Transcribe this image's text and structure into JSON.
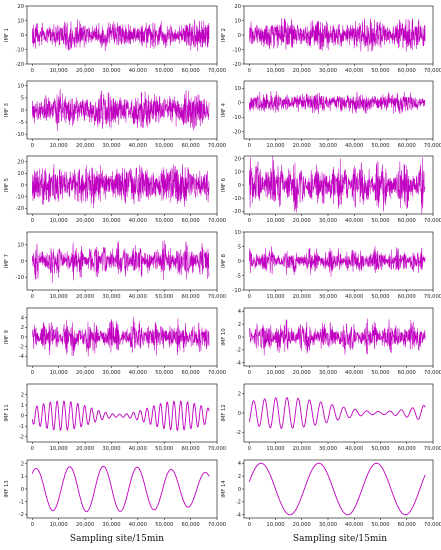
{
  "chart_data": [
    {
      "type": "line",
      "ylabel": "IMF 1",
      "color": "#c000c0",
      "ylim": [
        -20,
        20
      ],
      "yticks": [
        -20,
        -10,
        0,
        10,
        20
      ],
      "xlim": [
        -2000,
        70000
      ],
      "xticks": [
        0,
        10000,
        20000,
        30000,
        40000,
        50000,
        60000,
        70000
      ],
      "xticklabels": [
        "0",
        "10,000",
        "20,000",
        "30,000",
        "40,000",
        "50,000",
        "60,000",
        "70,000"
      ],
      "x_end": 67000,
      "amplitude": 12,
      "period": 300,
      "envelope": "noise"
    },
    {
      "type": "line",
      "ylabel": "IMF 2",
      "color": "#c000c0",
      "ylim": [
        -20,
        20
      ],
      "yticks": [
        -20,
        -10,
        0,
        10,
        20
      ],
      "xlim": [
        -2000,
        70000
      ],
      "xticks": [
        0,
        10000,
        20000,
        30000,
        40000,
        50000,
        60000,
        70000
      ],
      "xticklabels": [
        "0",
        "10,000",
        "20,000",
        "30,000",
        "40,000",
        "50,000",
        "60,000",
        "70,000"
      ],
      "x_end": 67000,
      "amplitude": 13,
      "period": 320,
      "envelope": "noise"
    },
    {
      "type": "line",
      "ylabel": "IMF 3",
      "color": "#c000c0",
      "ylim": [
        -12,
        12
      ],
      "yticks": [
        -10,
        -5,
        0,
        5,
        10
      ],
      "xlim": [
        -2000,
        70000
      ],
      "xticks": [
        0,
        10000,
        20000,
        30000,
        40000,
        50000,
        60000,
        70000
      ],
      "xticklabels": [
        "0",
        "10,000",
        "20,000",
        "30,000",
        "40,000",
        "50,000",
        "60,000",
        "70,000"
      ],
      "x_end": 67000,
      "amplitude": 9,
      "period": 340,
      "envelope": "noise"
    },
    {
      "type": "line",
      "ylabel": "IMF 4",
      "color": "#c000c0",
      "ylim": [
        -25,
        15
      ],
      "yticks": [
        -20,
        -10,
        0,
        10
      ],
      "xlim": [
        -2000,
        70000
      ],
      "xticks": [
        0,
        10000,
        20000,
        30000,
        40000,
        50000,
        60000,
        70000
      ],
      "xticklabels": [
        "0",
        "10,000",
        "20,000",
        "30,000",
        "40,000",
        "50,000",
        "60,000",
        "70,000"
      ],
      "x_end": 67000,
      "amplitude": 9,
      "period": 360,
      "envelope": "noise"
    },
    {
      "type": "line",
      "ylabel": "IMF 5",
      "color": "#c000c0",
      "ylim": [
        -25,
        25
      ],
      "yticks": [
        -20,
        -10,
        0,
        10,
        20
      ],
      "xlim": [
        -2000,
        70000
      ],
      "xticks": [
        0,
        10000,
        20000,
        30000,
        40000,
        50000,
        60000,
        70000
      ],
      "xticklabels": [
        "0",
        "10,000",
        "20,000",
        "30,000",
        "40,000",
        "50,000",
        "60,000",
        "70,000"
      ],
      "x_end": 67000,
      "amplitude": 21,
      "period": 380,
      "envelope": "noise"
    },
    {
      "type": "line",
      "ylabel": "IMF 6",
      "color": "#c000c0",
      "ylim": [
        -22,
        22
      ],
      "yticks": [
        -20,
        -10,
        0,
        10,
        20
      ],
      "xlim": [
        -2000,
        70000
      ],
      "xticks": [
        0,
        10000,
        20000,
        30000,
        40000,
        50000,
        60000,
        70000
      ],
      "xticklabels": [
        "0",
        "10,000",
        "20,000",
        "30,000",
        "40,000",
        "50,000",
        "60,000",
        "70,000"
      ],
      "x_end": 67000,
      "amplitude": 17,
      "period": 400,
      "envelope": "bursty"
    },
    {
      "type": "line",
      "ylabel": "IMF 7",
      "color": "#c000c0",
      "ylim": [
        -18,
        18
      ],
      "yticks": [
        -10,
        0,
        10
      ],
      "xlim": [
        -2000,
        70000
      ],
      "xticks": [
        0,
        10000,
        20000,
        30000,
        40000,
        50000,
        60000,
        70000
      ],
      "xticklabels": [
        "0",
        "10,000",
        "20,000",
        "30,000",
        "40,000",
        "50,000",
        "60,000",
        "70,000"
      ],
      "x_end": 67000,
      "amplitude": 10,
      "period": 450,
      "envelope": "bursty"
    },
    {
      "type": "line",
      "ylabel": "IMF 8",
      "color": "#c000c0",
      "ylim": [
        -10,
        10
      ],
      "yticks": [
        -10,
        -5,
        0,
        5,
        10
      ],
      "xlim": [
        -2000,
        70000
      ],
      "xticks": [
        0,
        10000,
        20000,
        30000,
        40000,
        50000,
        60000,
        70000
      ],
      "xticklabels": [
        "0",
        "10,000",
        "20,000",
        "30,000",
        "40,000",
        "50,000",
        "60,000",
        "70,000"
      ],
      "x_end": 67000,
      "amplitude": 4,
      "period": 500,
      "envelope": "bursty"
    },
    {
      "type": "line",
      "ylabel": "IMF 9",
      "color": "#c000c0",
      "ylim": [
        -6,
        6
      ],
      "yticks": [
        -4,
        -2,
        0,
        2,
        4
      ],
      "xlim": [
        -2000,
        70000
      ],
      "xticks": [
        0,
        10000,
        20000,
        30000,
        40000,
        50000,
        60000,
        70000
      ],
      "xticklabels": [
        "0",
        "10,000",
        "20,000",
        "30,000",
        "40,000",
        "50,000",
        "60,000",
        "70,000"
      ],
      "x_end": 67000,
      "amplitude": 3.2,
      "period": 650,
      "envelope": "bursty"
    },
    {
      "type": "line",
      "ylabel": "IMF 10",
      "color": "#c000c0",
      "ylim": [
        -4.5,
        4.5
      ],
      "yticks": [
        -4,
        -2,
        0,
        2,
        4
      ],
      "xlim": [
        -2000,
        70000
      ],
      "xticks": [
        0,
        10000,
        20000,
        30000,
        40000,
        50000,
        60000,
        70000
      ],
      "xticklabels": [
        "0",
        "10,000",
        "20,000",
        "30,000",
        "40,000",
        "50,000",
        "60,000",
        "70,000"
      ],
      "x_end": 67000,
      "amplitude": 2.2,
      "period": 800,
      "envelope": "bursty"
    },
    {
      "type": "line",
      "ylabel": "IMF 11",
      "color": "#c000c0",
      "ylim": [
        -2.5,
        3
      ],
      "yticks": [
        -2,
        -1,
        0,
        1,
        2
      ],
      "xlim": [
        -2000,
        70000
      ],
      "xticks": [
        0,
        10000,
        20000,
        30000,
        40000,
        50000,
        60000,
        70000
      ],
      "xticklabels": [
        "0",
        "10,000",
        "20,000",
        "30,000",
        "40,000",
        "50,000",
        "60,000",
        "70,000"
      ],
      "x_end": 67000,
      "amplitude": 1.4,
      "period": 2600,
      "envelope": "smooth"
    },
    {
      "type": "line",
      "ylabel": "IMF 12",
      "color": "#c000c0",
      "ylim": [
        -3,
        3
      ],
      "yticks": [
        -2,
        0,
        2
      ],
      "xlim": [
        -2000,
        70000
      ],
      "xticks": [
        0,
        10000,
        20000,
        30000,
        40000,
        50000,
        60000,
        70000
      ],
      "xticklabels": [
        "0",
        "10,000",
        "20,000",
        "30,000",
        "40,000",
        "50,000",
        "60,000",
        "70,000"
      ],
      "x_end": 67000,
      "amplitude": 1.6,
      "period": 4300,
      "envelope": "smooth"
    },
    {
      "type": "line",
      "ylabel": "IMF 13",
      "color": "#c000c0",
      "ylim": [
        -2.3,
        2.3
      ],
      "yticks": [
        -2,
        -1,
        0,
        1,
        2
      ],
      "xlim": [
        -2000,
        70000
      ],
      "xticks": [
        0,
        10000,
        20000,
        30000,
        40000,
        50000,
        60000,
        70000
      ],
      "xticklabels": [
        "0",
        "10,000",
        "20,000",
        "30,000",
        "40,000",
        "50,000",
        "60,000",
        "70,000"
      ],
      "x_end": 67000,
      "amplitude": 1.8,
      "period": 13000,
      "envelope": "smooth"
    },
    {
      "type": "line",
      "ylabel": "IMF 14",
      "color": "#c000c0",
      "ylim": [
        -4.5,
        4.5
      ],
      "yticks": [
        -4,
        -2,
        0,
        2,
        4
      ],
      "xlim": [
        -2000,
        70000
      ],
      "xticks": [
        0,
        10000,
        20000,
        30000,
        40000,
        50000,
        60000,
        70000
      ],
      "xticklabels": [
        "0",
        "10,000",
        "20,000",
        "30,000",
        "40,000",
        "50,000",
        "60,000",
        "70,000"
      ],
      "x_end": 67000,
      "amplitude": 4,
      "period": 22000,
      "envelope": "sine"
    }
  ],
  "xlabels": {
    "left": "Sampling site/15min",
    "right": "Sampling site/15min"
  }
}
